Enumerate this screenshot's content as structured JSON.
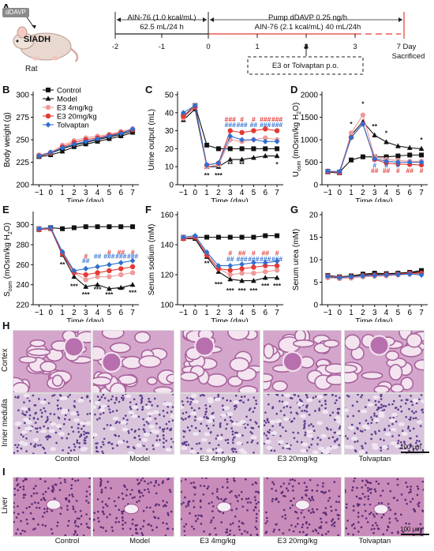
{
  "panels": {
    "A": "A",
    "B": "B",
    "C": "C",
    "D": "D",
    "E": "E",
    "F": "F",
    "G": "G",
    "H": "H",
    "I": "I"
  },
  "timeline": {
    "drug_box": "dDAVP",
    "disease": "SIADH",
    "animal": "Rat",
    "diet1_line1": "AIN-76 (1.0 kcal/mL)",
    "diet1_line2": "62.5 mL/24 h",
    "pump_line1": "Pump dDAVP 0.25 ng/h",
    "pump_line2": "AIN-76 (2.1 kcal/mL) 40 mL/24h",
    "treatment": "E3 or Tolvaptan p.o.",
    "ticks": [
      "-2",
      "-1",
      "0",
      "1",
      "2",
      "3"
    ],
    "end_day": "7 Day",
    "end_label": "Sacrificed"
  },
  "legend": [
    "Control",
    "Model",
    "E3 4mg/kg",
    "E3 20mg/kg",
    "Tolvaptan"
  ],
  "colors": {
    "Control": "#111111",
    "Model": "#111111",
    "E3 4mg/kg": "#ef9a9a",
    "E3 20mg/kg": "#e53935",
    "Tolvaptan": "#2e6fd1"
  },
  "chart_data": [
    {
      "id": "B",
      "type": "line",
      "ylabel": "Body weight (g)",
      "xlabel": "Time (day)",
      "x": [
        -1,
        0,
        1,
        2,
        3,
        4,
        5,
        6,
        7
      ],
      "ylim": [
        200,
        300
      ],
      "yticks": [
        200,
        225,
        250,
        275,
        300
      ],
      "series": [
        {
          "name": "Control",
          "values": [
            232,
            235,
            240,
            244,
            247,
            250,
            253,
            256,
            260
          ]
        },
        {
          "name": "Model",
          "values": [
            231,
            233,
            237,
            242,
            245,
            248,
            251,
            254,
            258
          ]
        },
        {
          "name": "E3 4mg/kg",
          "values": [
            233,
            236,
            244,
            249,
            252,
            254,
            256,
            259,
            262
          ]
        },
        {
          "name": "E3 20mg/kg",
          "values": [
            232,
            235,
            242,
            247,
            250,
            252,
            255,
            258,
            261
          ]
        },
        {
          "name": "Tolvaptan",
          "values": [
            232,
            236,
            241,
            245,
            248,
            251,
            254,
            257,
            262
          ]
        }
      ],
      "annotations": []
    },
    {
      "id": "C",
      "type": "line",
      "ylabel": "Urine output (mL)",
      "xlabel": "Time (day)",
      "x": [
        -1,
        0,
        1,
        2,
        3,
        4,
        5,
        6,
        7
      ],
      "ylim": [
        0,
        50
      ],
      "yticks": [
        0,
        10,
        20,
        30,
        40,
        50
      ],
      "series": [
        {
          "name": "Control",
          "values": [
            38,
            44,
            22,
            20,
            20,
            20,
            20,
            20,
            20
          ]
        },
        {
          "name": "Model",
          "values": [
            36,
            42,
            10,
            10,
            14,
            14,
            15,
            16,
            16
          ]
        },
        {
          "name": "E3 4mg/kg",
          "values": [
            37,
            44,
            10,
            11,
            25,
            24,
            25,
            26,
            25
          ]
        },
        {
          "name": "E3 20mg/kg",
          "values": [
            38,
            43,
            11,
            12,
            30,
            29,
            30,
            31,
            30
          ]
        },
        {
          "name": "Tolvaptan",
          "values": [
            40,
            44,
            11,
            12,
            27,
            25,
            25,
            24,
            24
          ]
        }
      ],
      "annotations": [
        {
          "x": 1,
          "y": 4,
          "text": "**",
          "color": "#111111"
        },
        {
          "x": 2,
          "y": 4,
          "text": "***",
          "color": "#111111"
        },
        {
          "x": 3,
          "y": 10,
          "text": "**",
          "color": "#111111"
        },
        {
          "x": 4,
          "y": 10,
          "text": "**",
          "color": "#111111"
        },
        {
          "x": 7,
          "y": 10,
          "text": "*",
          "color": "#111111"
        },
        {
          "x": 3,
          "y": 35,
          "text": "###",
          "color": "#e53935"
        },
        {
          "x": 3,
          "y": 32,
          "text": "###",
          "color": "#2e6fd1"
        },
        {
          "x": 4,
          "y": 35,
          "text": "#",
          "color": "#e53935"
        },
        {
          "x": 4,
          "y": 32,
          "text": "###",
          "color": "#2e6fd1"
        },
        {
          "x": 5,
          "y": 35,
          "text": "#",
          "color": "#e53935"
        },
        {
          "x": 5,
          "y": 32,
          "text": "##",
          "color": "#2e6fd1"
        },
        {
          "x": 6,
          "y": 35,
          "text": "###",
          "color": "#e53935"
        },
        {
          "x": 6,
          "y": 32,
          "text": "###",
          "color": "#2e6fd1"
        },
        {
          "x": 7,
          "y": 35,
          "text": "###",
          "color": "#e53935"
        },
        {
          "x": 7,
          "y": 32,
          "text": "###",
          "color": "#2e6fd1"
        }
      ]
    },
    {
      "id": "D",
      "type": "line",
      "ylabel": "Uosm (mOsm/kg H2O)",
      "xlabel": "Time (day)",
      "x": [
        -1,
        0,
        1,
        2,
        3,
        4,
        5,
        6,
        7
      ],
      "ylim": [
        0,
        2000
      ],
      "yticks": [
        0,
        500,
        1000,
        1500,
        2000
      ],
      "series": [
        {
          "name": "Control",
          "values": [
            300,
            280,
            550,
            620,
            620,
            620,
            640,
            660,
            660
          ]
        },
        {
          "name": "Model",
          "values": [
            280,
            260,
            1100,
            1400,
            1100,
            950,
            860,
            820,
            800
          ]
        },
        {
          "name": "E3 4mg/kg",
          "values": [
            300,
            280,
            1150,
            1550,
            620,
            560,
            540,
            520,
            520
          ]
        },
        {
          "name": "E3 20mg/kg",
          "values": [
            290,
            270,
            1050,
            1350,
            560,
            480,
            460,
            450,
            440
          ]
        },
        {
          "name": "Tolvaptan",
          "values": [
            300,
            290,
            1050,
            1350,
            580,
            520,
            500,
            500,
            500
          ]
        }
      ],
      "annotations": [
        {
          "x": 1,
          "y": 1300,
          "text": "*",
          "color": "#111111"
        },
        {
          "x": 2,
          "y": 1750,
          "text": "*",
          "color": "#111111"
        },
        {
          "x": 3,
          "y": 1250,
          "text": "**",
          "color": "#111111"
        },
        {
          "x": 4,
          "y": 1100,
          "text": "*",
          "color": "#111111"
        },
        {
          "x": 7,
          "y": 950,
          "text": "*",
          "color": "#111111"
        },
        {
          "x": 3,
          "y": 380,
          "text": "#",
          "color": "#2e6fd1"
        },
        {
          "x": 3,
          "y": 260,
          "text": "##",
          "color": "#e53935"
        },
        {
          "x": 4,
          "y": 380,
          "text": "#",
          "color": "#2e6fd1"
        },
        {
          "x": 4,
          "y": 260,
          "text": "##",
          "color": "#e53935"
        },
        {
          "x": 5,
          "y": 380,
          "text": "#",
          "color": "#2e6fd1"
        },
        {
          "x": 5,
          "y": 260,
          "text": "#",
          "color": "#e53935"
        },
        {
          "x": 6,
          "y": 260,
          "text": "##",
          "color": "#e53935"
        },
        {
          "x": 7,
          "y": 260,
          "text": "#",
          "color": "#e53935"
        }
      ]
    },
    {
      "id": "E",
      "type": "line",
      "ylabel": "Sosm (mOsm/kg H2O)",
      "xlabel": "Time (day)",
      "x": [
        -1,
        0,
        1,
        2,
        3,
        4,
        5,
        6,
        7
      ],
      "ylim": [
        220,
        310
      ],
      "yticks": [
        220,
        240,
        260,
        280,
        300
      ],
      "series": [
        {
          "name": "Control",
          "values": [
            296,
            297,
            296,
            297,
            298,
            298,
            298,
            298,
            298
          ]
        },
        {
          "name": "Model",
          "values": [
            295,
            296,
            270,
            248,
            238,
            240,
            236,
            237,
            240
          ]
        },
        {
          "name": "E3 4mg/kg",
          "values": [
            296,
            296,
            272,
            252,
            245,
            248,
            248,
            250,
            252
          ]
        },
        {
          "name": "E3 20mg/kg",
          "values": [
            295,
            296,
            271,
            252,
            250,
            252,
            254,
            256,
            258
          ]
        },
        {
          "name": "Tolvaptan",
          "values": [
            296,
            297,
            273,
            254,
            256,
            258,
            260,
            262,
            264
          ]
        }
      ],
      "annotations": [
        {
          "x": 1,
          "y": 258,
          "text": "**",
          "color": "#111111"
        },
        {
          "x": 2,
          "y": 236,
          "text": "***",
          "color": "#111111"
        },
        {
          "x": 3,
          "y": 228,
          "text": "***",
          "color": "#111111"
        },
        {
          "x": 4,
          "y": 233,
          "text": "***",
          "color": "#111111"
        },
        {
          "x": 5,
          "y": 228,
          "text": "***",
          "color": "#111111"
        },
        {
          "x": 6,
          "y": 233,
          "text": "***",
          "color": "#111111"
        },
        {
          "x": 7,
          "y": 230,
          "text": "***",
          "color": "#111111"
        },
        {
          "x": 3,
          "y": 266,
          "text": "#",
          "color": "#e53935"
        },
        {
          "x": 3,
          "y": 262,
          "text": "##",
          "color": "#2e6fd1"
        },
        {
          "x": 4,
          "y": 266,
          "text": "##",
          "color": "#2e6fd1"
        },
        {
          "x": 5,
          "y": 270,
          "text": "#",
          "color": "#e53935"
        },
        {
          "x": 5,
          "y": 266,
          "text": "###",
          "color": "#2e6fd1"
        },
        {
          "x": 6,
          "y": 270,
          "text": "##",
          "color": "#e53935"
        },
        {
          "x": 6,
          "y": 266,
          "text": "###",
          "color": "#2e6fd1"
        },
        {
          "x": 7,
          "y": 270,
          "text": "#",
          "color": "#e53935"
        },
        {
          "x": 7,
          "y": 266,
          "text": "###",
          "color": "#2e6fd1"
        }
      ]
    },
    {
      "id": "F",
      "type": "line",
      "ylabel": "Serum sodium (mM)",
      "xlabel": "Time (day)",
      "x": [
        -1,
        0,
        1,
        2,
        3,
        4,
        5,
        6,
        7
      ],
      "ylim": [
        100,
        160
      ],
      "yticks": [
        100,
        120,
        140,
        160
      ],
      "series": [
        {
          "name": "Control",
          "values": [
            145,
            145,
            145,
            145,
            145,
            145,
            145,
            146,
            146
          ]
        },
        {
          "name": "Model",
          "values": [
            144,
            144,
            132,
            122,
            117,
            116,
            116,
            118,
            118
          ]
        },
        {
          "name": "E3 4mg/kg",
          "values": [
            145,
            145,
            134,
            124,
            120,
            121,
            121,
            122,
            123
          ]
        },
        {
          "name": "E3 20mg/kg",
          "values": [
            144,
            145,
            133,
            124,
            123,
            124,
            125,
            126,
            126
          ]
        },
        {
          "name": "Tolvaptan",
          "values": [
            145,
            146,
            135,
            126,
            126,
            127,
            128,
            128,
            129
          ]
        }
      ],
      "annotations": [
        {
          "x": 1,
          "y": 126,
          "text": "**",
          "color": "#111111"
        },
        {
          "x": 2,
          "y": 112,
          "text": "***",
          "color": "#111111"
        },
        {
          "x": 3,
          "y": 108,
          "text": "***",
          "color": "#111111"
        },
        {
          "x": 4,
          "y": 108,
          "text": "***",
          "color": "#111111"
        },
        {
          "x": 5,
          "y": 108,
          "text": "***",
          "color": "#111111"
        },
        {
          "x": 6,
          "y": 111,
          "text": "***",
          "color": "#111111"
        },
        {
          "x": 7,
          "y": 111,
          "text": "***",
          "color": "#111111"
        },
        {
          "x": 3,
          "y": 133,
          "text": "#",
          "color": "#e53935"
        },
        {
          "x": 3,
          "y": 129,
          "text": "##",
          "color": "#2e6fd1"
        },
        {
          "x": 4,
          "y": 133,
          "text": "##",
          "color": "#e53935"
        },
        {
          "x": 4,
          "y": 129,
          "text": "###",
          "color": "#2e6fd1"
        },
        {
          "x": 5,
          "y": 133,
          "text": "#",
          "color": "#e53935"
        },
        {
          "x": 5,
          "y": 129,
          "text": "###",
          "color": "#2e6fd1"
        },
        {
          "x": 6,
          "y": 133,
          "text": "##",
          "color": "#e53935"
        },
        {
          "x": 6,
          "y": 129,
          "text": "###",
          "color": "#2e6fd1"
        },
        {
          "x": 7,
          "y": 133,
          "text": "#",
          "color": "#e53935"
        },
        {
          "x": 7,
          "y": 129,
          "text": "###",
          "color": "#2e6fd1"
        }
      ]
    },
    {
      "id": "G",
      "type": "line",
      "ylabel": "Serum urea (mM)",
      "xlabel": "Time (day)",
      "x": [
        -1,
        0,
        1,
        2,
        3,
        4,
        5,
        6,
        7
      ],
      "ylim": [
        0,
        20
      ],
      "yticks": [
        0,
        5,
        10,
        15,
        20
      ],
      "series": [
        {
          "name": "Control",
          "values": [
            6.5,
            6.2,
            6.4,
            6.8,
            7.0,
            6.9,
            7.0,
            7.2,
            7.6
          ]
        },
        {
          "name": "Model",
          "values": [
            6.2,
            6.0,
            6.3,
            6.6,
            6.8,
            6.7,
            7.0,
            7.1,
            7.3
          ]
        },
        {
          "name": "E3 4mg/kg",
          "values": [
            6.0,
            5.8,
            5.9,
            6.2,
            6.3,
            6.4,
            6.6,
            6.8,
            6.9
          ]
        },
        {
          "name": "E3 20mg/kg",
          "values": [
            6.4,
            6.1,
            6.2,
            6.5,
            6.6,
            6.7,
            6.8,
            7.0,
            7.0
          ]
        },
        {
          "name": "Tolvaptan",
          "values": [
            6.3,
            6.0,
            6.2,
            6.4,
            6.5,
            6.6,
            6.7,
            6.8,
            6.6
          ]
        }
      ],
      "annotations": []
    }
  ],
  "histology": {
    "columns": [
      "Control",
      "Model",
      "E3 4mg/kg",
      "E3 20mg/kg",
      "Tolvaptan"
    ],
    "rowH1": "Cortex",
    "rowH2": "Inner medulla",
    "rowI": "Liver",
    "scalebar": "100 μm"
  }
}
